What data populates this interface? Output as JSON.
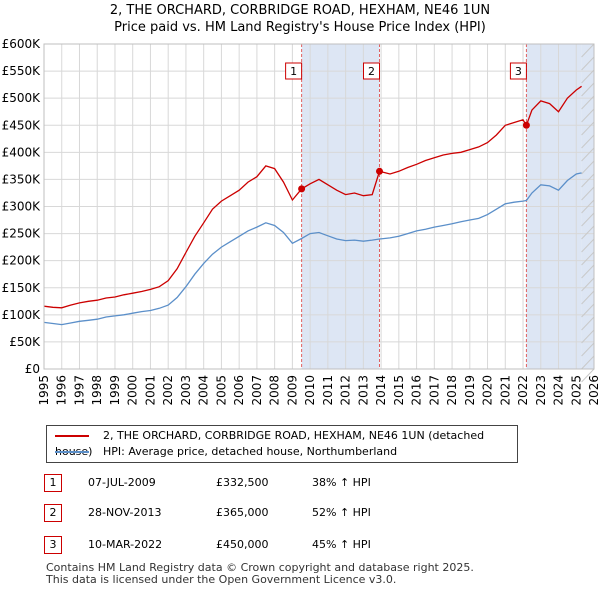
{
  "title_line1": "2, THE ORCHARD, CORBRIDGE ROAD, HEXHAM, NE46 1UN",
  "title_line2": "Price paid vs. HM Land Registry's House Price Index (HPI)",
  "legend": {
    "property": "2, THE ORCHARD, CORBRIDGE ROAD, HEXHAM, NE46 1UN (detached house)",
    "hpi": "HPI: Average price, detached house, Northumberland"
  },
  "sales": [
    {
      "num": "1",
      "date": "07-JUL-2009",
      "price": "£332,500",
      "hpi": "38% ↑ HPI"
    },
    {
      "num": "2",
      "date": "28-NOV-2013",
      "price": "£365,000",
      "hpi": "52% ↑ HPI"
    },
    {
      "num": "3",
      "date": "10-MAR-2022",
      "price": "£450,000",
      "hpi": "45% ↑ HPI"
    }
  ],
  "footer_line1": "Contains HM Land Registry data © Crown copyright and database right 2025.",
  "footer_line2": "This data is licensed under the Open Government Licence v3.0.",
  "chart_data": {
    "type": "line",
    "title": "2, THE ORCHARD, CORBRIDGE ROAD, HEXHAM, NE46 1UN\nPrice paid vs. HM Land Registry's House Price Index (HPI)",
    "xlim": [
      1995,
      2026
    ],
    "ylim": [
      0,
      600000
    ],
    "x_ticks": [
      "1995",
      "1996",
      "1997",
      "1998",
      "1999",
      "2000",
      "2001",
      "2002",
      "2003",
      "2004",
      "2005",
      "2006",
      "2007",
      "2008",
      "2009",
      "2010",
      "2011",
      "2012",
      "2013",
      "2014",
      "2015",
      "2016",
      "2017",
      "2018",
      "2019",
      "2020",
      "2021",
      "2022",
      "2023",
      "2024",
      "2025",
      "2026"
    ],
    "y_ticks": [
      {
        "value": 0,
        "label": "£0"
      },
      {
        "value": 50000,
        "label": "£50K"
      },
      {
        "value": 100000,
        "label": "£100K"
      },
      {
        "value": 150000,
        "label": "£150K"
      },
      {
        "value": 200000,
        "label": "£200K"
      },
      {
        "value": 250000,
        "label": "£250K"
      },
      {
        "value": 300000,
        "label": "£300K"
      },
      {
        "value": 350000,
        "label": "£350K"
      },
      {
        "value": 400000,
        "label": "£400K"
      },
      {
        "value": 450000,
        "label": "£450K"
      },
      {
        "value": 500000,
        "label": "£500K"
      },
      {
        "value": 550000,
        "label": "£550K"
      },
      {
        "value": 600000,
        "label": "£600K"
      }
    ],
    "grid": true,
    "colors": {
      "property": "#cc0000",
      "hpi": "#5b8fc9",
      "shade": "#dde6f4",
      "vline": "#e06060"
    },
    "series": [
      {
        "name": "2, THE ORCHARD, CORBRIDGE ROAD, HEXHAM, NE46 1UN (detached house)",
        "points": [
          [
            1995.0,
            116000
          ],
          [
            1995.5,
            114000
          ],
          [
            1996.0,
            113000
          ],
          [
            1996.5,
            118000
          ],
          [
            1997.0,
            122000
          ],
          [
            1997.5,
            125000
          ],
          [
            1998.0,
            127000
          ],
          [
            1998.5,
            131000
          ],
          [
            1999.0,
            133000
          ],
          [
            1999.5,
            137000
          ],
          [
            2000.0,
            140000
          ],
          [
            2000.5,
            143000
          ],
          [
            2001.0,
            147000
          ],
          [
            2001.5,
            152000
          ],
          [
            2002.0,
            163000
          ],
          [
            2002.5,
            185000
          ],
          [
            2003.0,
            215000
          ],
          [
            2003.5,
            245000
          ],
          [
            2004.0,
            270000
          ],
          [
            2004.5,
            295000
          ],
          [
            2005.0,
            310000
          ],
          [
            2005.5,
            320000
          ],
          [
            2006.0,
            330000
          ],
          [
            2006.5,
            345000
          ],
          [
            2007.0,
            355000
          ],
          [
            2007.5,
            375000
          ],
          [
            2008.0,
            370000
          ],
          [
            2008.5,
            345000
          ],
          [
            2009.0,
            312000
          ],
          [
            2009.52,
            332500
          ],
          [
            2010.0,
            342000
          ],
          [
            2010.5,
            350000
          ],
          [
            2011.0,
            340000
          ],
          [
            2011.5,
            330000
          ],
          [
            2012.0,
            322000
          ],
          [
            2012.5,
            325000
          ],
          [
            2013.0,
            320000
          ],
          [
            2013.5,
            322000
          ],
          [
            2013.91,
            365000
          ],
          [
            2014.5,
            360000
          ],
          [
            2015.0,
            365000
          ],
          [
            2015.5,
            372000
          ],
          [
            2016.0,
            378000
          ],
          [
            2016.5,
            385000
          ],
          [
            2017.0,
            390000
          ],
          [
            2017.5,
            395000
          ],
          [
            2018.0,
            398000
          ],
          [
            2018.5,
            400000
          ],
          [
            2019.0,
            405000
          ],
          [
            2019.5,
            410000
          ],
          [
            2020.0,
            418000
          ],
          [
            2020.5,
            432000
          ],
          [
            2021.0,
            450000
          ],
          [
            2021.5,
            455000
          ],
          [
            2022.0,
            460000
          ],
          [
            2022.19,
            450000
          ],
          [
            2022.5,
            478000
          ],
          [
            2023.0,
            495000
          ],
          [
            2023.5,
            490000
          ],
          [
            2024.0,
            475000
          ],
          [
            2024.5,
            500000
          ],
          [
            2025.0,
            515000
          ],
          [
            2025.3,
            522000
          ]
        ]
      },
      {
        "name": "HPI: Average price, detached house, Northumberland",
        "points": [
          [
            1995.0,
            86000
          ],
          [
            1995.5,
            84000
          ],
          [
            1996.0,
            82000
          ],
          [
            1996.5,
            85000
          ],
          [
            1997.0,
            88000
          ],
          [
            1997.5,
            90000
          ],
          [
            1998.0,
            92000
          ],
          [
            1998.5,
            96000
          ],
          [
            1999.0,
            98000
          ],
          [
            1999.5,
            100000
          ],
          [
            2000.0,
            103000
          ],
          [
            2000.5,
            106000
          ],
          [
            2001.0,
            108000
          ],
          [
            2001.5,
            112000
          ],
          [
            2002.0,
            118000
          ],
          [
            2002.5,
            132000
          ],
          [
            2003.0,
            152000
          ],
          [
            2003.5,
            175000
          ],
          [
            2004.0,
            195000
          ],
          [
            2004.5,
            212000
          ],
          [
            2005.0,
            225000
          ],
          [
            2005.5,
            235000
          ],
          [
            2006.0,
            245000
          ],
          [
            2006.5,
            255000
          ],
          [
            2007.0,
            262000
          ],
          [
            2007.5,
            270000
          ],
          [
            2008.0,
            265000
          ],
          [
            2008.5,
            252000
          ],
          [
            2009.0,
            232000
          ],
          [
            2009.52,
            241000
          ],
          [
            2010.0,
            250000
          ],
          [
            2010.5,
            252000
          ],
          [
            2011.0,
            246000
          ],
          [
            2011.5,
            240000
          ],
          [
            2012.0,
            237000
          ],
          [
            2012.5,
            238000
          ],
          [
            2013.0,
            236000
          ],
          [
            2013.5,
            238000
          ],
          [
            2013.91,
            240000
          ],
          [
            2014.5,
            242000
          ],
          [
            2015.0,
            245000
          ],
          [
            2015.5,
            250000
          ],
          [
            2016.0,
            255000
          ],
          [
            2016.5,
            258000
          ],
          [
            2017.0,
            262000
          ],
          [
            2017.5,
            265000
          ],
          [
            2018.0,
            268000
          ],
          [
            2018.5,
            272000
          ],
          [
            2019.0,
            275000
          ],
          [
            2019.5,
            278000
          ],
          [
            2020.0,
            285000
          ],
          [
            2020.5,
            295000
          ],
          [
            2021.0,
            305000
          ],
          [
            2021.5,
            308000
          ],
          [
            2022.0,
            310000
          ],
          [
            2022.19,
            311000
          ],
          [
            2022.5,
            325000
          ],
          [
            2023.0,
            340000
          ],
          [
            2023.5,
            338000
          ],
          [
            2024.0,
            330000
          ],
          [
            2024.5,
            348000
          ],
          [
            2025.0,
            360000
          ],
          [
            2025.3,
            362000
          ]
        ]
      }
    ],
    "sale_markers": [
      {
        "label": "1",
        "x": 2009.52,
        "y": 332500
      },
      {
        "label": "2",
        "x": 2013.91,
        "y": 365000
      },
      {
        "label": "3",
        "x": 2022.19,
        "y": 450000
      }
    ],
    "shaded_ranges": [
      [
        2009.52,
        2013.91
      ],
      [
        2022.19,
        2025.3
      ],
      [
        2025.3,
        2026
      ]
    ]
  }
}
